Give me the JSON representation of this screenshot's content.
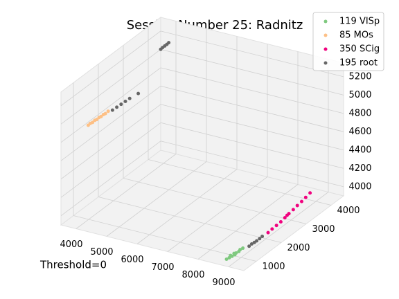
{
  "chart_data": {
    "type": "scatter3d",
    "title": "Session Number 25: Radnitz",
    "annotation": "Threshold=0",
    "xlim": [
      3500,
      9500
    ],
    "ylim": [
      500,
      4500
    ],
    "zlim": [
      3900,
      5350
    ],
    "xticks": [
      4000,
      5000,
      6000,
      7000,
      8000,
      9000
    ],
    "yticks": [
      1000,
      2000,
      3000,
      4000
    ],
    "zticks": [
      4000,
      4200,
      4400,
      4600,
      4800,
      5000,
      5200
    ],
    "grid": true,
    "legend": "upper right",
    "series": [
      {
        "name": "119 VISp",
        "color": "#7fc97f",
        "x": [
          8850,
          8900,
          8950,
          9000,
          9000,
          9050,
          8900,
          8950,
          9050,
          9100
        ],
        "y": [
          600,
          650,
          700,
          750,
          800,
          850,
          700,
          780,
          900,
          950
        ],
        "z": [
          3950,
          3960,
          3970,
          3980,
          3990,
          4000,
          3975,
          3985,
          4010,
          4020
        ]
      },
      {
        "name": "85 MOs",
        "color": "#fdc086",
        "x": [
          4150,
          4200,
          4250,
          4300,
          4350,
          4400,
          4450,
          4500,
          4550,
          4600
        ],
        "y": [
          800,
          820,
          850,
          880,
          900,
          930,
          950,
          980,
          1000,
          1050
        ],
        "z": [
          4980,
          5000,
          5010,
          5030,
          5040,
          5060,
          5070,
          5090,
          5100,
          5120
        ]
      },
      {
        "name": "350 SCig",
        "color": "#f0027f",
        "x": [
          9150,
          9160,
          9180,
          9200,
          9210,
          9220,
          9240,
          9250,
          9270,
          9280,
          9300,
          9200
        ],
        "y": [
          1900,
          2050,
          2200,
          2350,
          2500,
          2650,
          2800,
          2950,
          3100,
          3250,
          3400,
          2600
        ],
        "z": [
          4000,
          4010,
          4020,
          4030,
          4045,
          4060,
          4075,
          4090,
          4105,
          4120,
          4140,
          4050
        ]
      },
      {
        "name": "195 root",
        "color": "#666666",
        "x": [
          9100,
          9120,
          9150,
          9170,
          9200,
          9220,
          4700,
          4800,
          4900,
          5000,
          5100,
          5300,
          4400,
          4420,
          4450,
          4480,
          4500
        ],
        "y": [
          1200,
          1280,
          1350,
          1420,
          1500,
          1580,
          1100,
          1150,
          1200,
          1250,
          1300,
          1400,
          3400,
          3450,
          3500,
          3550,
          3600
        ],
        "z": [
          3990,
          4000,
          4005,
          4010,
          4020,
          4030,
          5130,
          5160,
          5190,
          5220,
          5250,
          5300,
          5300,
          5310,
          5320,
          5330,
          5340
        ]
      }
    ]
  }
}
